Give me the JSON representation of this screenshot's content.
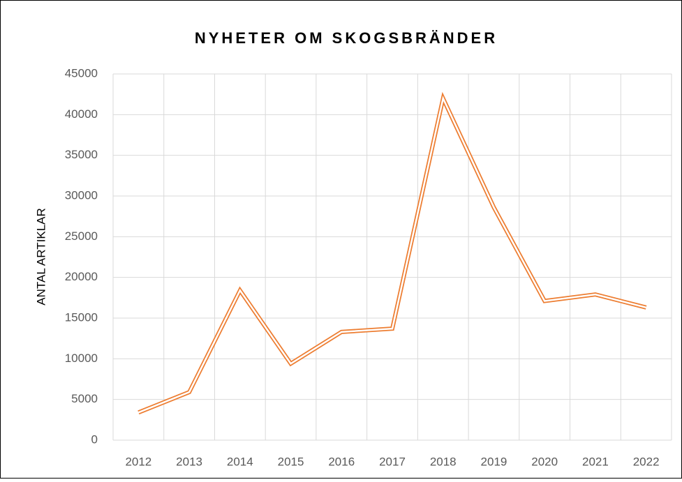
{
  "chart_data": {
    "type": "line",
    "title": "NYHETER OM SKOGSBRÄNDER",
    "y_label": "ANTAL ARTIKLAR",
    "categories": [
      "2012",
      "2013",
      "2014",
      "2015",
      "2016",
      "2017",
      "2018",
      "2019",
      "2020",
      "2021",
      "2022"
    ],
    "series": [
      {
        "name": "Antal artiklar",
        "color": "#ed7d31",
        "values": [
          3400,
          5900,
          18400,
          9400,
          13300,
          13700,
          42000,
          28600,
          17100,
          17900,
          16300
        ]
      }
    ],
    "ylim": [
      0,
      45000
    ],
    "yticks": [
      0,
      5000,
      10000,
      15000,
      20000,
      25000,
      30000,
      35000,
      40000,
      45000
    ],
    "grid": true
  }
}
